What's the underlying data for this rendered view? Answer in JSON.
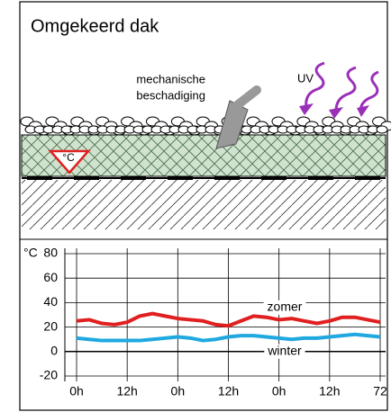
{
  "title": "Omgekeerd dak",
  "illustration": {
    "damage_label": [
      "mechanische",
      "beschadiging"
    ],
    "uv_label": "UV",
    "temp_symbol": "°C"
  },
  "chart_data": {
    "type": "line",
    "y_label": "°C",
    "x": [
      0,
      3,
      6,
      9,
      12,
      15,
      18,
      21,
      24,
      27,
      30,
      33,
      36,
      39,
      42,
      45,
      48,
      51,
      54,
      57,
      60,
      63,
      66,
      69,
      72
    ],
    "series": [
      {
        "name": "zomer",
        "color": "#e02020",
        "values": [
          25,
          26,
          23,
          22,
          24,
          29,
          31,
          29,
          27,
          26,
          25,
          22,
          21,
          25,
          29,
          28,
          26,
          27,
          25,
          23,
          25,
          28,
          28,
          26,
          24
        ]
      },
      {
        "name": "winter",
        "color": "#20a8e0",
        "values": [
          11,
          10,
          9,
          9,
          9,
          9,
          10,
          11,
          12,
          11,
          9,
          10,
          12,
          13,
          13,
          12,
          11,
          10,
          11,
          11,
          12,
          13,
          14,
          13,
          12
        ]
      }
    ],
    "xlim": [
      0,
      72
    ],
    "xticks": [
      {
        "value": 0,
        "label": "0h"
      },
      {
        "value": 12,
        "label": "12h"
      },
      {
        "value": 24,
        "label": "0h"
      },
      {
        "value": 36,
        "label": "12h"
      },
      {
        "value": 48,
        "label": "0h"
      },
      {
        "value": 60,
        "label": "12h"
      },
      72
    ],
    "ylim": [
      -20,
      80
    ],
    "yticks": [
      -20,
      0,
      20,
      40,
      60,
      80
    ],
    "grid": true
  }
}
